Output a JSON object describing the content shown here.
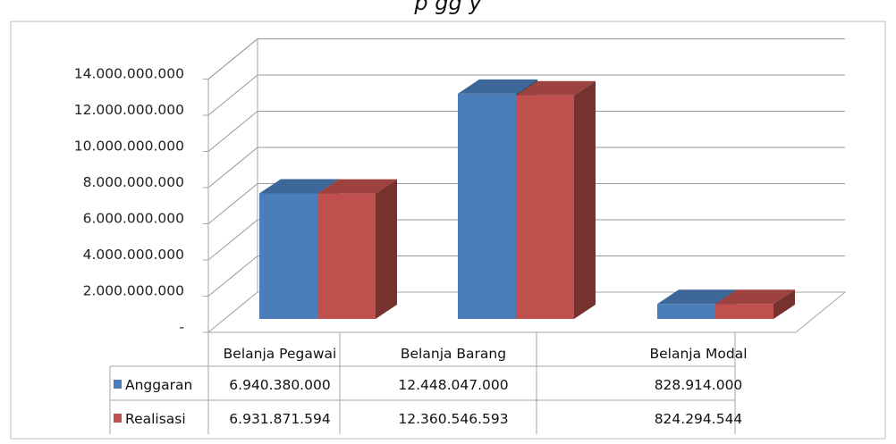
{
  "chart_data": {
    "type": "bar",
    "title": "",
    "title_fragment": "p            gg                                       y",
    "categories": [
      "Belanja Pegawai",
      "Belanja Barang",
      "Belanja Modal"
    ],
    "series": [
      {
        "name": "Anggaran",
        "color": "#4a7ebb",
        "values": [
          6940380000,
          12448047000,
          828914000
        ]
      },
      {
        "name": "Realisasi",
        "color": "#c0504d",
        "values": [
          6931871594,
          12360546593,
          824294544
        ]
      }
    ],
    "data_table": [
      [
        "6.940.380.000",
        "12.448.047.000",
        "828.914.000"
      ],
      [
        "6.931.871.594",
        "12.360.546.593",
        "824.294.544"
      ]
    ],
    "yticks": [
      "-",
      "2.000.000.000",
      "4.000.000.000",
      "6.000.000.000",
      "8.000.000.000",
      "10.000.000.000",
      "12.000.000.000",
      "14.000.000.000"
    ],
    "ylim": [
      0,
      14000000000
    ],
    "grid": true,
    "legend": "data-table",
    "style": "3d-clustered-column"
  }
}
